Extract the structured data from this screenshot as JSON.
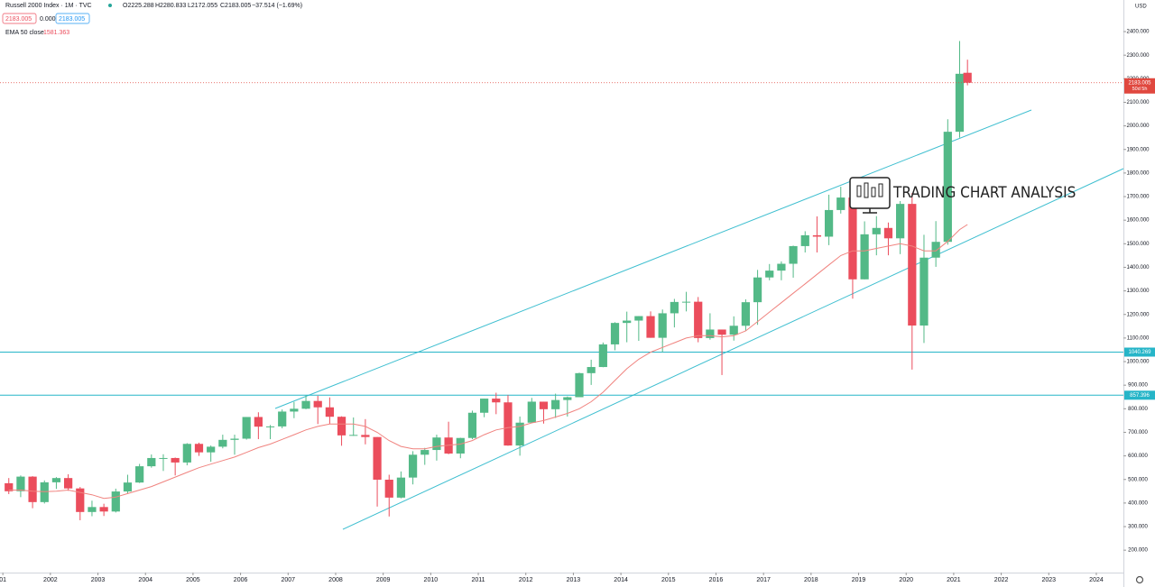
{
  "header": {
    "symbol": "Russell 2000 Index · 1M · TVC",
    "open": "O2225.288",
    "high": "H2280.833",
    "low": "L2172.055",
    "close": "C2183.005",
    "change": "−37.514 (−1.69%)",
    "box1": "2183.005",
    "mid": "0.000",
    "box2": "2183.005",
    "ema_name": "EMA 50 close",
    "ema_value": "1581.363",
    "currency": "USD",
    "last_time": "50d 5h",
    "watermark": "TRADING CHART ANALYSIS"
  },
  "chart_data": {
    "type": "candlestick",
    "up_color": "#53b987",
    "down_color": "#eb4d5c",
    "x": [
      2001.125,
      2001.375,
      2001.625,
      2001.875,
      2002.125,
      2002.375,
      2002.625,
      2002.875,
      2003.125,
      2003.375,
      2003.625,
      2003.875,
      2004.125,
      2004.375,
      2004.625,
      2004.875,
      2005.125,
      2005.375,
      2005.625,
      2005.875,
      2006.125,
      2006.375,
      2006.625,
      2006.875,
      2007.125,
      2007.375,
      2007.625,
      2007.875,
      2008.125,
      2008.375,
      2008.625,
      2008.875,
      2009.125,
      2009.375,
      2009.625,
      2009.875,
      2010.125,
      2010.375,
      2010.625,
      2010.875,
      2011.125,
      2011.375,
      2011.625,
      2011.875,
      2012.125,
      2012.375,
      2012.625,
      2012.875,
      2013.125,
      2013.375,
      2013.625,
      2013.875,
      2014.125,
      2014.375,
      2014.625,
      2014.875,
      2015.125,
      2015.375,
      2015.625,
      2015.875,
      2016.125,
      2016.375,
      2016.625,
      2016.875,
      2017.125,
      2017.375,
      2017.625,
      2017.875,
      2018.125,
      2018.375,
      2018.625,
      2018.875,
      2019.125,
      2019.375,
      2019.625,
      2019.875,
      2020.125,
      2020.375,
      2020.625,
      2020.875,
      2021.125,
      2021.29
    ],
    "open": [
      484,
      450,
      512,
      404,
      488,
      506,
      462,
      362,
      383,
      364,
      449,
      487,
      556,
      591,
      591,
      572,
      651,
      615,
      639,
      668,
      673,
      765,
      724,
      725,
      788,
      800,
      833,
      806,
      766,
      687,
      689,
      680,
      499,
      423,
      508,
      605,
      625,
      678,
      610,
      676,
      783,
      843,
      827,
      644,
      741,
      830,
      798,
      837,
      849,
      951,
      977,
      1073,
      1164,
      1174,
      1193,
      1101,
      1205,
      1253,
      1254,
      1100,
      1136,
      1114,
      1152,
      1252,
      1357,
      1386,
      1415,
      1490,
      1536,
      1530,
      1643,
      1696,
      1349,
      1540,
      1567,
      1523,
      1669,
      1153,
      1441,
      1508,
      1975,
      2225.288
    ],
    "high": [
      506,
      517,
      514,
      496,
      510,
      522,
      468,
      410,
      397,
      461,
      520,
      566,
      606,
      607,
      593,
      654,
      656,
      644,
      690,
      690,
      765,
      785,
      731,
      797,
      829,
      856,
      855,
      848,
      768,
      763,
      756,
      680,
      520,
      534,
      620,
      634,
      690,
      745,
      677,
      792,
      843,
      868,
      858,
      767,
      846,
      830,
      864,
      852,
      953,
      1008,
      1081,
      1167,
      1212,
      1193,
      1213,
      1221,
      1266,
      1296,
      1274,
      1205,
      1136,
      1192,
      1264,
      1389,
      1414,
      1425,
      1492,
      1553,
      1616,
      1708,
      1742,
      1708,
      1595,
      1617,
      1590,
      1681,
      1715,
      1538,
      1596,
      2028,
      2360,
      2280.833
    ],
    "low": [
      438,
      425,
      378,
      398,
      460,
      452,
      327,
      344,
      345,
      360,
      440,
      485,
      550,
      536,
      517,
      560,
      600,
      575,
      632,
      605,
      669,
      671,
      671,
      717,
      760,
      798,
      735,
      735,
      643,
      685,
      649,
      385,
      343,
      420,
      479,
      562,
      580,
      607,
      590,
      671,
      764,
      777,
      643,
      601,
      740,
      737,
      761,
      767,
      849,
      901,
      976,
      1048,
      1082,
      1088,
      1101,
      1040,
      1145,
      1213,
      1082,
      1093,
      943,
      1089,
      1131,
      1156,
      1345,
      1345,
      1356,
      1463,
      1463,
      1494,
      1628,
      1267,
      1349,
      1451,
      1451,
      1456,
      966,
      1079,
      1402,
      1496,
      1950,
      2172.055
    ],
    "close": [
      450,
      512,
      404,
      488,
      506,
      462,
      362,
      383,
      364,
      449,
      487,
      556,
      591,
      591,
      572,
      651,
      615,
      639,
      668,
      673,
      765,
      724,
      725,
      788,
      800,
      833,
      806,
      766,
      687,
      689,
      680,
      499,
      423,
      508,
      605,
      625,
      678,
      610,
      676,
      783,
      843,
      827,
      644,
      741,
      830,
      798,
      837,
      849,
      951,
      977,
      1073,
      1164,
      1174,
      1193,
      1101,
      1205,
      1253,
      1254,
      1100,
      1136,
      1114,
      1152,
      1252,
      1357,
      1386,
      1415,
      1490,
      1536,
      1530,
      1643,
      1696,
      1349,
      1540,
      1567,
      1523,
      1669,
      1153,
      1441,
      1508,
      1975,
      2221,
      2183.005
    ],
    "series": [
      {
        "name": "EMA 50 close",
        "color": "#f0837f",
        "values": [
          455,
          455,
          450,
          448,
          450,
          455,
          445,
          435,
          420,
          425,
          440,
          455,
          470,
          490,
          510,
          530,
          550,
          565,
          580,
          595,
          615,
          635,
          650,
          670,
          690,
          710,
          725,
          735,
          735,
          735,
          725,
          700,
          665,
          640,
          630,
          630,
          640,
          645,
          650,
          665,
          690,
          710,
          720,
          725,
          740,
          750,
          765,
          780,
          800,
          830,
          870,
          920,
          970,
          1010,
          1040,
          1060,
          1080,
          1100,
          1110,
          1110,
          1105,
          1110,
          1130,
          1170,
          1210,
          1250,
          1290,
          1330,
          1370,
          1410,
          1450,
          1470,
          1470,
          1480,
          1490,
          1500,
          1490,
          1470,
          1470,
          1510,
          1560,
          1581.363
        ]
      }
    ],
    "hlines": [
      {
        "value": 1040.269,
        "label": "1040.269",
        "color": "#26b5c8"
      },
      {
        "value": 857.396,
        "label": "857.396",
        "color": "#26b5c8"
      }
    ],
    "last_price": {
      "value": 2183.005,
      "label": "2183.005",
      "color": "#e0483f"
    },
    "xlim": [
      2000.94,
      2024.57
    ],
    "xticks": [
      {
        "value": 2001,
        "label": "01"
      },
      2002,
      2003,
      2004,
      2005,
      2006,
      2007,
      2008,
      2009,
      2010,
      2011,
      2012,
      2013,
      2014,
      2015,
      2016,
      2017,
      2018,
      2019,
      2020,
      2021,
      2022,
      2023,
      2024
    ],
    "ylim": [
      105,
      2534
    ],
    "yticks": [
      {
        "value": 200,
        "label": "200.000"
      },
      {
        "value": 300,
        "label": "300.000"
      },
      {
        "value": 400,
        "label": "400.000"
      },
      {
        "value": 500,
        "label": "500.000"
      },
      {
        "value": 600,
        "label": "600.000"
      },
      {
        "value": 700,
        "label": "700.000"
      },
      {
        "value": 800,
        "label": "800.000"
      },
      {
        "value": 900,
        "label": "900.000"
      },
      {
        "value": 1000,
        "label": "1000.000"
      },
      {
        "value": 1100,
        "label": "1100.000"
      },
      {
        "value": 1200,
        "label": "1200.000"
      },
      {
        "value": 1300,
        "label": "1300.000"
      },
      {
        "value": 1400,
        "label": "1400.000"
      },
      {
        "value": 1500,
        "label": "1500.000"
      },
      {
        "value": 1600,
        "label": "1600.000"
      },
      {
        "value": 1700,
        "label": "1700.000"
      },
      {
        "value": 1800,
        "label": "1800.000"
      },
      {
        "value": 1900,
        "label": "1900.000"
      },
      {
        "value": 2000,
        "label": "2000.000"
      },
      {
        "value": 2100,
        "label": "2100.000"
      },
      {
        "value": 2200,
        "label": "2200.000"
      },
      {
        "value": 2300,
        "label": "2300.000"
      },
      {
        "value": 2400,
        "label": "2400.000"
      }
    ],
    "grid": false
  }
}
